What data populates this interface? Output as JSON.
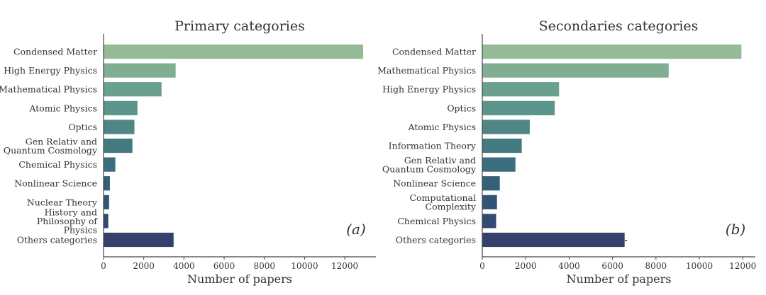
{
  "chart_data": [
    {
      "type": "bar",
      "orientation": "horizontal",
      "title": "Primary categories",
      "panel_label": "(a)",
      "xlabel": "Number of papers",
      "ylabel": "",
      "xlim": [
        0,
        13550
      ],
      "xticks": [
        0,
        2000,
        4000,
        6000,
        8000,
        10000,
        12000
      ],
      "grid": false,
      "categories": [
        [
          "Condensed Matter"
        ],
        [
          "High Energy Physics"
        ],
        [
          "Mathematical Physics"
        ],
        [
          "Atomic Physics"
        ],
        [
          "Optics"
        ],
        [
          "Gen Relativ and",
          "Quantum Cosmology"
        ],
        [
          "Chemical Physics"
        ],
        [
          "Nonlinear Science"
        ],
        [
          "Nuclear Theory"
        ],
        [
          "History and",
          "Philosophy of",
          "Physics"
        ],
        [
          "Others categories"
        ]
      ],
      "values": [
        12930,
        3600,
        2900,
        1700,
        1550,
        1450,
        600,
        330,
        290,
        250,
        3500
      ],
      "colors": [
        "#94bb96",
        "#80ae92",
        "#6aa18d",
        "#5a948a",
        "#4d8685",
        "#437a80",
        "#3a6d7d",
        "#34607a",
        "#325476",
        "#334a72",
        "#35416d"
      ]
    },
    {
      "type": "bar",
      "orientation": "horizontal",
      "title": "Secondaries categories",
      "panel_label": "(b)",
      "xlabel": "Number of papers",
      "ylabel": "",
      "xlim": [
        0,
        12580
      ],
      "xticks": [
        0,
        2000,
        4000,
        6000,
        8000,
        10000,
        12000
      ],
      "grid": false,
      "categories": [
        [
          "Condensed Matter"
        ],
        [
          "Mathematical Physics"
        ],
        [
          "High Energy Physics"
        ],
        [
          "Optics"
        ],
        [
          "Atomic Physics"
        ],
        [
          "Information Theory"
        ],
        [
          "Gen Relativ and",
          "Quantum Cosmology"
        ],
        [
          "Nonlinear Science"
        ],
        [
          "Computational",
          "Complexity"
        ],
        [
          "Chemical Physics"
        ],
        [
          "Others categories"
        ]
      ],
      "values": [
        11950,
        8600,
        3550,
        3350,
        2200,
        1830,
        1540,
        820,
        690,
        650,
        6570
      ],
      "colors": [
        "#94bb96",
        "#80ae92",
        "#6aa18d",
        "#5a948a",
        "#4d8685",
        "#437a80",
        "#3a6d7d",
        "#34607a",
        "#325476",
        "#334a72",
        "#35416d"
      ]
    }
  ]
}
